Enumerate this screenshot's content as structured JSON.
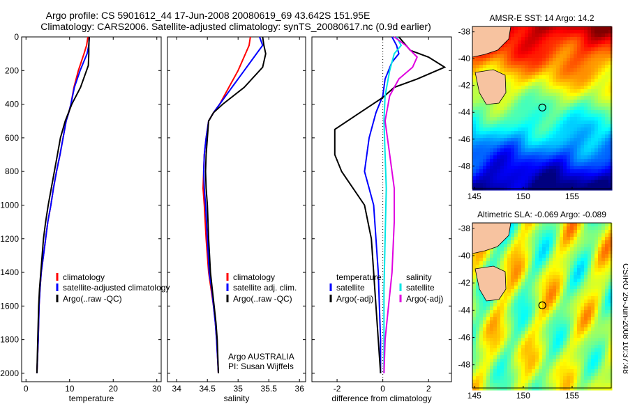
{
  "header": {
    "title_line1": "Argo profile: CS 5901612_44 17-Jun-2008 20080619_69 43.642S 151.95E",
    "title_line2": "Climatology: CARS2006. Satellite-adjusted climatology: synTS_20080617.nc (0.9d earlier)"
  },
  "colors": {
    "climatology": "#ff0000",
    "satellite": "#0000ff",
    "argo": "#000000",
    "sal_satellite": "#00e5e5",
    "sal_argo": "#e000e0"
  },
  "chart_data": [
    {
      "type": "line",
      "xlabel": "temperature",
      "xlim": [
        -1,
        31
      ],
      "ylim": [
        0,
        2050
      ],
      "xticks": [
        0,
        10,
        20,
        30
      ],
      "yticks": [
        0,
        200,
        400,
        600,
        800,
        1000,
        1200,
        1400,
        1600,
        1800,
        2000
      ],
      "legend": [
        "climatology",
        "satellite-adjusted climatology",
        "Argo(..raw -QC)"
      ],
      "series": [
        {
          "name": "climatology",
          "color": "red",
          "x": [
            14.2,
            13.9,
            13.3,
            12.0,
            11.0,
            10.3,
            9.8,
            9.2,
            8.5,
            7.8,
            7.0,
            6.3,
            5.7,
            5.0,
            4.5,
            4.0,
            3.5,
            3.2,
            3.0,
            2.8,
            2.5
          ],
          "y": [
            0,
            50,
            100,
            200,
            300,
            400,
            450,
            500,
            600,
            700,
            800,
            900,
            1000,
            1100,
            1200,
            1300,
            1400,
            1500,
            1600,
            1800,
            2000
          ]
        },
        {
          "name": "satellite-adjusted climatology",
          "color": "blue",
          "x": [
            14.5,
            14.4,
            14.0,
            12.4,
            11.1,
            10.3,
            9.8,
            9.2,
            8.5,
            7.8,
            7.0,
            6.3,
            5.7,
            5.0,
            4.5,
            4.0,
            3.5,
            3.2,
            3.0,
            2.8,
            2.5
          ],
          "y": [
            0,
            50,
            100,
            200,
            300,
            400,
            450,
            500,
            600,
            700,
            800,
            900,
            1000,
            1100,
            1200,
            1300,
            1400,
            1500,
            1600,
            1800,
            2000
          ]
        },
        {
          "name": "Argo(..raw -QC)",
          "color": "black",
          "x": [
            14.5,
            14.4,
            14.4,
            14.3,
            12.5,
            10.5,
            9.0,
            7.9,
            7.2,
            6.5,
            5.8,
            5.1,
            4.5,
            4.0,
            3.7,
            3.4,
            3.1,
            2.9,
            2.7,
            2.5
          ],
          "y": [
            0,
            50,
            100,
            170,
            300,
            400,
            500,
            600,
            700,
            800,
            900,
            1000,
            1100,
            1200,
            1300,
            1400,
            1500,
            1600,
            1800,
            2000
          ]
        }
      ]
    },
    {
      "type": "line",
      "xlabel": "salinity",
      "xlim": [
        33.85,
        36.1
      ],
      "ylim": [
        0,
        2050
      ],
      "xticks": [
        34,
        34.5,
        35,
        35.5,
        36
      ],
      "yticks": [
        0,
        200,
        400,
        600,
        800,
        1000,
        1200,
        1400,
        1600,
        1800,
        2000
      ],
      "legend": [
        "climatology",
        "satellite adj. clim.",
        "Argo(..raw -QC)"
      ],
      "annotations": [
        "Argo AUSTRALIA",
        "PI: Susan Wijffels"
      ],
      "series": [
        {
          "name": "climatology",
          "color": "red",
          "x": [
            35.2,
            35.18,
            35.12,
            35.0,
            34.85,
            34.7,
            34.6,
            34.52,
            34.48,
            34.45,
            34.44,
            34.43,
            34.45,
            34.48,
            34.52,
            34.56,
            34.6,
            34.63,
            34.65,
            34.68
          ],
          "y": [
            0,
            50,
            100,
            200,
            300,
            400,
            450,
            500,
            600,
            700,
            800,
            900,
            1000,
            1200,
            1400,
            1500,
            1600,
            1700,
            1800,
            2000
          ]
        },
        {
          "name": "satellite adj. clim.",
          "color": "blue",
          "x": [
            35.35,
            35.4,
            35.3,
            35.1,
            34.9,
            34.7,
            34.6,
            34.52,
            34.48,
            34.45,
            34.44,
            34.45,
            34.47,
            34.5,
            34.53,
            34.57,
            34.6,
            34.63,
            34.65,
            34.68
          ],
          "y": [
            0,
            50,
            100,
            200,
            300,
            400,
            450,
            500,
            600,
            700,
            800,
            900,
            1000,
            1200,
            1400,
            1500,
            1600,
            1700,
            1800,
            2000
          ]
        },
        {
          "name": "Argo(..raw -QC)",
          "color": "black",
          "x": [
            35.4,
            35.42,
            35.45,
            35.4,
            35.1,
            34.75,
            34.6,
            34.52,
            34.5,
            34.48,
            34.47,
            34.48,
            34.5,
            34.52,
            34.55,
            34.58,
            34.61,
            34.64,
            34.66,
            34.68
          ],
          "y": [
            0,
            50,
            100,
            180,
            300,
            400,
            450,
            500,
            600,
            700,
            800,
            900,
            1000,
            1200,
            1400,
            1500,
            1600,
            1700,
            1800,
            2000
          ]
        }
      ]
    },
    {
      "type": "line",
      "xlabel": "difference from climatology",
      "xlim": [
        -3.1,
        3.0
      ],
      "ylim": [
        0,
        2050
      ],
      "xticks": [
        -2,
        0,
        2
      ],
      "yticks": [
        0,
        200,
        400,
        600,
        800,
        1000,
        1200,
        1400,
        1600,
        1800,
        2000
      ],
      "legend": [
        "temperature",
        "satellite",
        "Argo(-adj)",
        "salinity",
        "satellite",
        "Argo(-adj)"
      ],
      "series": [
        {
          "name": "satellite",
          "quantity": "temperature",
          "color": "blue",
          "x": [
            0.4,
            0.6,
            0.7,
            0.4,
            0.1,
            0.0,
            -0.3,
            -0.6,
            -0.7,
            -0.8,
            -0.6,
            -0.4,
            -0.3,
            -0.2,
            -0.15,
            -0.1,
            -0.1
          ],
          "y": [
            0,
            50,
            100,
            150,
            250,
            350,
            450,
            600,
            700,
            800,
            900,
            1000,
            1200,
            1400,
            1600,
            1800,
            2000
          ]
        },
        {
          "name": "Argo(-adj)",
          "quantity": "temperature",
          "color": "black",
          "x": [
            0.7,
            1.2,
            2.0,
            2.7,
            1.5,
            0.5,
            0.0,
            -1.0,
            -2.1,
            -2.1,
            -1.8,
            -1.3,
            -0.8,
            -0.5,
            -0.4,
            -0.3,
            -0.2,
            -0.1
          ],
          "y": [
            0,
            80,
            120,
            180,
            250,
            300,
            360,
            450,
            550,
            700,
            800,
            900,
            1000,
            1200,
            1400,
            1600,
            1800,
            2000
          ]
        },
        {
          "name": "satellite",
          "quantity": "salinity",
          "color": "cyan",
          "x": [
            0.6,
            0.8,
            0.5,
            0.3,
            0.1,
            0.05,
            0.1,
            0.15,
            0.1,
            0.05,
            0.05,
            0.05
          ],
          "y": [
            0,
            50,
            100,
            200,
            350,
            500,
            700,
            900,
            1200,
            1500,
            1800,
            2000
          ]
        },
        {
          "name": "Argo(-adj)",
          "quantity": "salinity",
          "color": "magenta",
          "x": [
            0.5,
            1.0,
            1.5,
            1.3,
            0.7,
            0.3,
            0.1,
            0.3,
            0.5,
            0.5,
            0.4,
            0.25,
            0.1,
            0.05
          ],
          "y": [
            0,
            50,
            120,
            180,
            250,
            350,
            500,
            700,
            900,
            1100,
            1400,
            1600,
            1800,
            2000
          ]
        }
      ]
    },
    {
      "type": "heatmap",
      "title": "AMSR-E SST: 14 Argo: 14.2",
      "xlim": [
        144.8,
        159
      ],
      "ylim": [
        -49.7,
        -37.6
      ],
      "xticks": [
        145,
        150,
        155
      ],
      "yticks": [
        -38,
        -40,
        -42,
        -44,
        -46,
        -48
      ],
      "argo_position": {
        "lon": 151.95,
        "lat": -43.642
      }
    },
    {
      "type": "heatmap",
      "title": "Altimetric SLA: -0.069 Argo: -0.089",
      "xlim": [
        144.8,
        159
      ],
      "ylim": [
        -49.7,
        -37.6
      ],
      "xticks": [
        145,
        150,
        155
      ],
      "yticks": [
        -38,
        -40,
        -42,
        -44,
        -46,
        -48
      ],
      "argo_position": {
        "lon": 151.95,
        "lat": -43.642
      }
    }
  ],
  "footer": {
    "stamp": "CSIRO 26-Jun-2008 10:37:48"
  }
}
